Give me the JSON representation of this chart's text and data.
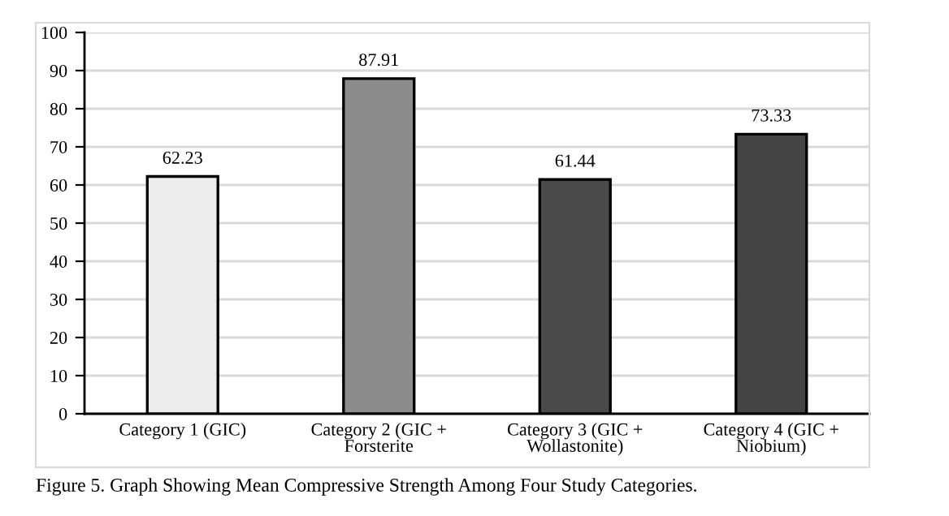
{
  "chart_data": {
    "type": "bar",
    "categories": [
      "Category 1 (GIC)",
      "Category 2 (GIC +\nForsterite",
      "Category 3 (GIC +\nWollastonite)",
      "Category 4 (GIC +\nNiobium)"
    ],
    "values": [
      62.23,
      87.91,
      61.44,
      73.33
    ],
    "colors": [
      "#ececec",
      "#8c8c8c",
      "#4a4a4a",
      "#444444"
    ],
    "ylim": [
      0,
      100
    ],
    "yticks": [
      0,
      10,
      20,
      30,
      40,
      50,
      60,
      70,
      80,
      90,
      100
    ],
    "grid": "y",
    "data_labels": true,
    "legend": false,
    "annotations": [
      "Figure 5. Graph Showing Mean Compressive Strength Among Four Study Categories."
    ]
  }
}
